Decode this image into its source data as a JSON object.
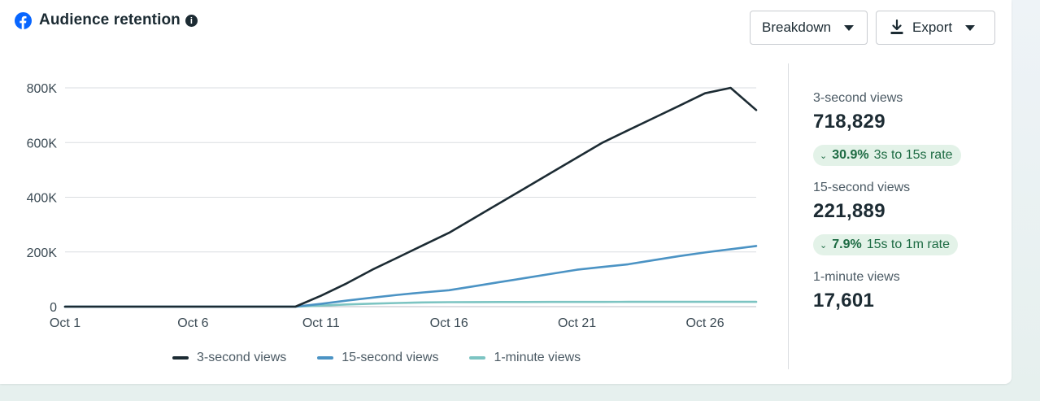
{
  "header": {
    "title": "Audience retention"
  },
  "toolbar": {
    "breakdown_label": "Breakdown",
    "export_label": "Export"
  },
  "metrics": {
    "three_second": {
      "label": "3-second views",
      "value": "718,829"
    },
    "rate_3_15": {
      "pct": "30.9%",
      "label": "3s to 15s rate"
    },
    "fifteen_second": {
      "label": "15-second views",
      "value": "221,889"
    },
    "rate_15_1m": {
      "pct": "7.9%",
      "label": "15s to 1m rate"
    },
    "one_minute": {
      "label": "1-minute views",
      "value": "17,601"
    }
  },
  "chart_data": {
    "type": "line",
    "ylim": [
      0,
      800000
    ],
    "yticks": [
      {
        "value": 0,
        "label": "0"
      },
      {
        "value": 200000,
        "label": "200K"
      },
      {
        "value": 400000,
        "label": "400K"
      },
      {
        "value": 600000,
        "label": "600K"
      },
      {
        "value": 800000,
        "label": "800K"
      }
    ],
    "xlim": [
      1,
      28
    ],
    "xticks": [
      {
        "value": 1,
        "label": "Oct 1"
      },
      {
        "value": 6,
        "label": "Oct 6"
      },
      {
        "value": 11,
        "label": "Oct 11"
      },
      {
        "value": 16,
        "label": "Oct 16"
      },
      {
        "value": 21,
        "label": "Oct 21"
      },
      {
        "value": 26,
        "label": "Oct 26"
      }
    ],
    "grid": true,
    "legend_position": "bottom",
    "series": [
      {
        "name": "3-second views",
        "color": "#1c2b33",
        "points": [
          [
            1,
            0
          ],
          [
            2,
            0
          ],
          [
            3,
            0
          ],
          [
            4,
            0
          ],
          [
            5,
            0
          ],
          [
            6,
            0
          ],
          [
            7,
            0
          ],
          [
            8,
            0
          ],
          [
            9,
            0
          ],
          [
            10,
            0
          ],
          [
            11,
            40000
          ],
          [
            12,
            85000
          ],
          [
            13,
            135000
          ],
          [
            14,
            180000
          ],
          [
            15,
            225000
          ],
          [
            16,
            270000
          ],
          [
            17,
            325000
          ],
          [
            18,
            380000
          ],
          [
            19,
            435000
          ],
          [
            20,
            490000
          ],
          [
            21,
            545000
          ],
          [
            22,
            600000
          ],
          [
            23,
            645000
          ],
          [
            24,
            690000
          ],
          [
            25,
            735000
          ],
          [
            26,
            780000
          ],
          [
            27,
            825000
          ],
          [
            28,
            718829
          ]
        ]
      },
      {
        "name": "15-second views",
        "color": "#4b93c4",
        "points": [
          [
            1,
            0
          ],
          [
            2,
            0
          ],
          [
            3,
            0
          ],
          [
            4,
            0
          ],
          [
            5,
            0
          ],
          [
            6,
            0
          ],
          [
            7,
            0
          ],
          [
            8,
            0
          ],
          [
            9,
            0
          ],
          [
            10,
            0
          ],
          [
            11,
            10000
          ],
          [
            12,
            22000
          ],
          [
            13,
            33000
          ],
          [
            14,
            43000
          ],
          [
            15,
            52000
          ],
          [
            16,
            60000
          ],
          [
            17,
            75000
          ],
          [
            18,
            90000
          ],
          [
            19,
            105000
          ],
          [
            20,
            120000
          ],
          [
            21,
            135000
          ],
          [
            22,
            145000
          ],
          [
            23,
            155000
          ],
          [
            24,
            170000
          ],
          [
            25,
            185000
          ],
          [
            26,
            198000
          ],
          [
            27,
            210000
          ],
          [
            28,
            221889
          ]
        ]
      },
      {
        "name": "1-minute views",
        "color": "#7cc4c2",
        "points": [
          [
            1,
            0
          ],
          [
            2,
            0
          ],
          [
            3,
            0
          ],
          [
            4,
            0
          ],
          [
            5,
            0
          ],
          [
            6,
            0
          ],
          [
            7,
            0
          ],
          [
            8,
            0
          ],
          [
            9,
            0
          ],
          [
            10,
            0
          ],
          [
            11,
            4000
          ],
          [
            12,
            8000
          ],
          [
            13,
            11000
          ],
          [
            14,
            13500
          ],
          [
            15,
            15500
          ],
          [
            16,
            16500
          ],
          [
            17,
            16800
          ],
          [
            18,
            17000
          ],
          [
            19,
            17100
          ],
          [
            20,
            17200
          ],
          [
            21,
            17300
          ],
          [
            22,
            17350
          ],
          [
            23,
            17400
          ],
          [
            24,
            17450
          ],
          [
            25,
            17500
          ],
          [
            26,
            17550
          ],
          [
            27,
            17580
          ],
          [
            28,
            17601
          ]
        ]
      }
    ]
  }
}
